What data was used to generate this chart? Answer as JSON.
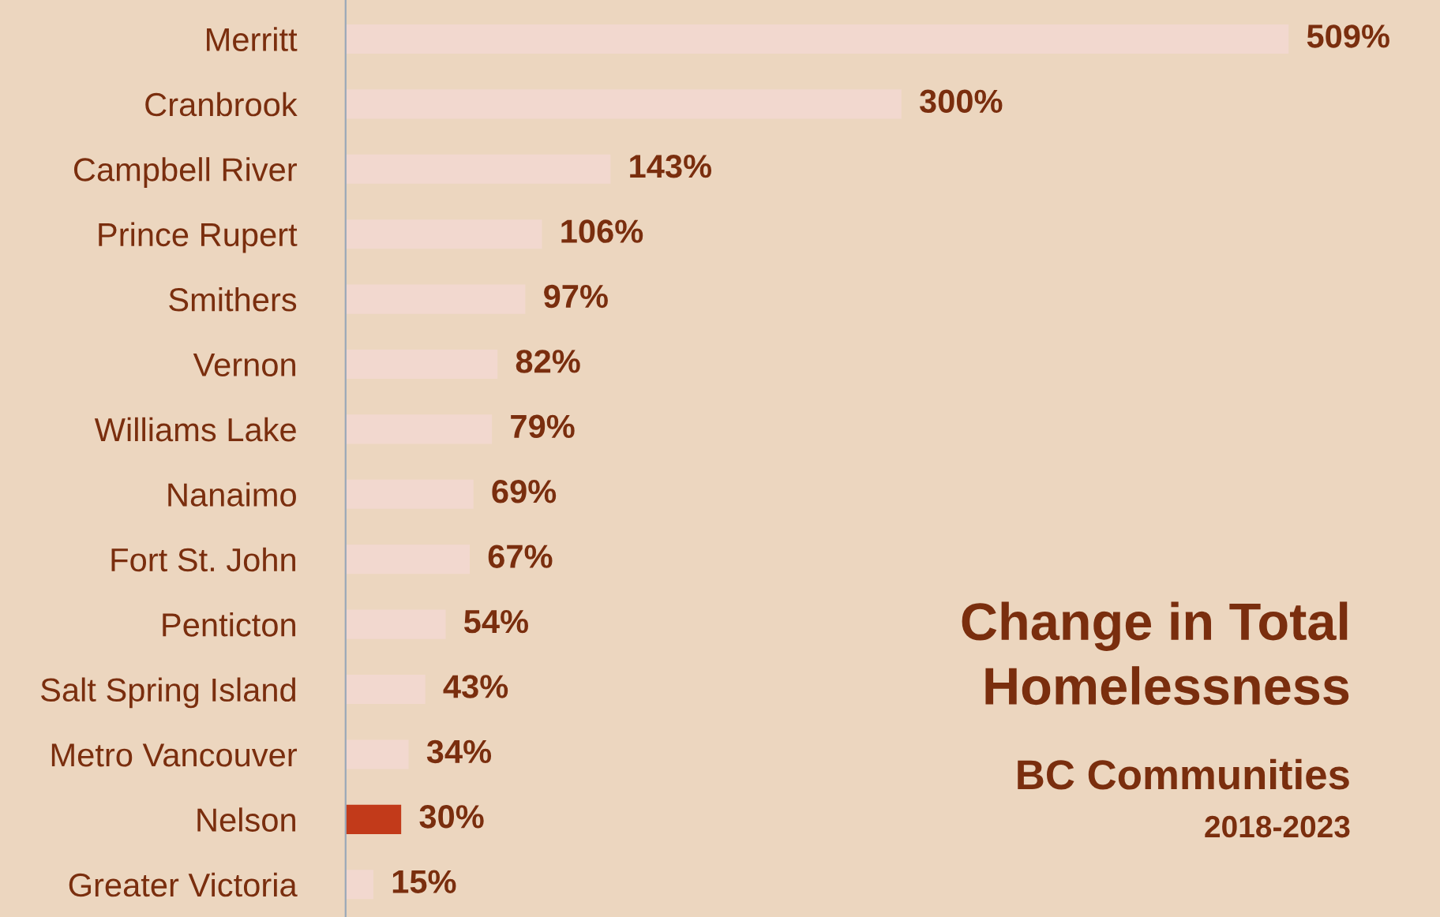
{
  "chart_data": {
    "type": "bar",
    "orientation": "horizontal",
    "title": "Change in Total\nHomelessness",
    "subtitle": "BC Communities",
    "annotations": [
      "2018-2023"
    ],
    "categories": [
      "Merritt",
      "Cranbrook",
      "Campbell River",
      "Prince Rupert",
      "Smithers",
      "Vernon",
      "Williams Lake",
      "Nanaimo",
      "Fort St. John",
      "Penticton",
      "Salt Spring Island",
      "Metro Vancouver",
      "Nelson",
      "Greater Victoria"
    ],
    "values": [
      509,
      300,
      143,
      106,
      97,
      82,
      79,
      69,
      67,
      54,
      43,
      34,
      30,
      15
    ],
    "value_labels": [
      "509%",
      "300%",
      "143%",
      "106%",
      "97%",
      "82%",
      "79%",
      "69%",
      "67%",
      "54%",
      "43%",
      "34%",
      "30%",
      "15%"
    ],
    "colors": [
      "#f2d8cf",
      "#f2d8cf",
      "#f2d8cf",
      "#f2d8cf",
      "#f2d8cf",
      "#f2d8cf",
      "#f2d8cf",
      "#f2d8cf",
      "#f2d8cf",
      "#f2d8cf",
      "#f2d8cf",
      "#f2d8cf",
      "#c23a1a",
      "#f2d8cf"
    ],
    "grid": false,
    "legend": false
  }
}
